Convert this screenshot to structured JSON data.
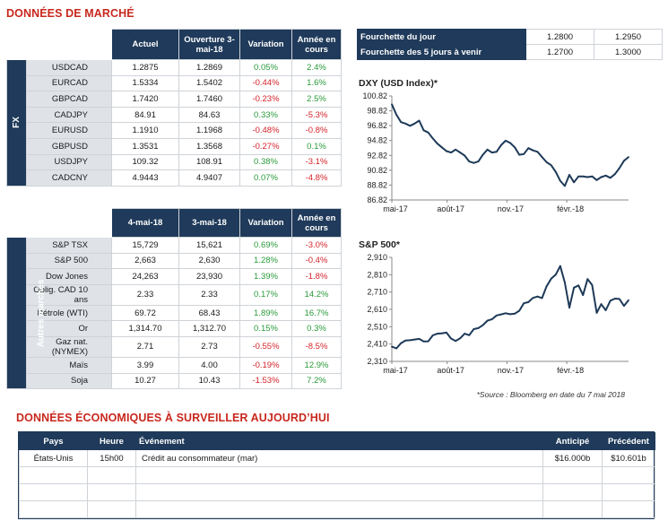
{
  "market_title": "DONNÉES DE MARCHÉ",
  "fx": {
    "label": "FX",
    "headers": [
      "Actuel",
      "Ouverture 3-mai-18",
      "Variation",
      "Année en cours"
    ],
    "rows": [
      {
        "name": "USDCAD",
        "cur": "1.2875",
        "open": "1.2869",
        "chg": "0.05%",
        "ytd": "2.4%"
      },
      {
        "name": "EURCAD",
        "cur": "1.5334",
        "open": "1.5402",
        "chg": "-0.44%",
        "ytd": "1.6%"
      },
      {
        "name": "GBPCAD",
        "cur": "1.7420",
        "open": "1.7460",
        "chg": "-0.23%",
        "ytd": "2.5%"
      },
      {
        "name": "CADJPY",
        "cur": "84.91",
        "open": "84.63",
        "chg": "0.33%",
        "ytd": "-5.3%"
      },
      {
        "name": "EURUSD",
        "cur": "1.1910",
        "open": "1.1968",
        "chg": "-0.48%",
        "ytd": "-0.8%"
      },
      {
        "name": "GBPUSD",
        "cur": "1.3531",
        "open": "1.3568",
        "chg": "-0.27%",
        "ytd": "0.1%"
      },
      {
        "name": "USDJPY",
        "cur": "109.32",
        "open": "108.91",
        "chg": "0.38%",
        "ytd": "-3.1%"
      },
      {
        "name": "CADCNY",
        "cur": "4.9443",
        "open": "4.9407",
        "chg": "0.07%",
        "ytd": "-4.8%"
      }
    ]
  },
  "other": {
    "label": "Autres marchés",
    "headers": [
      "4-mai-18",
      "3-mai-18",
      "Variation",
      "Année en cours"
    ],
    "rows": [
      {
        "name": "S&P TSX",
        "cur": "15,729",
        "open": "15,621",
        "chg": "0.69%",
        "ytd": "-3.0%"
      },
      {
        "name": "S&P 500",
        "cur": "2,663",
        "open": "2,630",
        "chg": "1.28%",
        "ytd": "-0.4%"
      },
      {
        "name": "Dow Jones",
        "cur": "24,263",
        "open": "23,930",
        "chg": "1.39%",
        "ytd": "-1.8%"
      },
      {
        "name": "Oblig. CAD 10 ans",
        "cur": "2.33",
        "open": "2.33",
        "chg": "0.17%",
        "ytd": "14.2%"
      },
      {
        "name": "Pétrole (WTI)",
        "cur": "69.72",
        "open": "68.43",
        "chg": "1.89%",
        "ytd": "16.7%"
      },
      {
        "name": "Or",
        "cur": "1,314.70",
        "open": "1,312.70",
        "chg": "0.15%",
        "ytd": "0.3%"
      },
      {
        "name": "Gaz nat. (NYMEX)",
        "cur": "2.71",
        "open": "2.73",
        "chg": "-0.55%",
        "ytd": "-8.5%"
      },
      {
        "name": "Maïs",
        "cur": "3.99",
        "open": "4.00",
        "chg": "-0.19%",
        "ytd": "12.9%"
      },
      {
        "name": "Soja",
        "cur": "10.27",
        "open": "10.43",
        "chg": "-1.53%",
        "ytd": "7.2%"
      }
    ]
  },
  "ranges": [
    {
      "label": "Fourchette du jour",
      "low": "1.2800",
      "high": "1.2950"
    },
    {
      "label": "Fourchette des 5 jours à venir",
      "low": "1.2700",
      "high": "1.3000"
    }
  ],
  "chart_data": [
    {
      "type": "line",
      "title": "DXY (USD Index)*",
      "x_ticks": [
        "mai-17",
        "août-17",
        "nov.-17",
        "févr.-18"
      ],
      "y_ticks": [
        "100.82",
        "98.82",
        "96.82",
        "94.82",
        "92.82",
        "90.82",
        "88.82",
        "86.82"
      ],
      "ylim": [
        86.82,
        100.82
      ],
      "series": [
        {
          "x": [
            "2017-05-08",
            "2017-05-15",
            "2017-05-22",
            "2017-05-29",
            "2017-06-05",
            "2017-06-12",
            "2017-06-19",
            "2017-06-26",
            "2017-07-03",
            "2017-07-10",
            "2017-07-17",
            "2017-07-24",
            "2017-07-31",
            "2017-08-07",
            "2017-08-14",
            "2017-08-21",
            "2017-08-28",
            "2017-09-04",
            "2017-09-11",
            "2017-09-18",
            "2017-09-25",
            "2017-10-02",
            "2017-10-09",
            "2017-10-16",
            "2017-10-23",
            "2017-10-30",
            "2017-11-06",
            "2017-11-13",
            "2017-11-20",
            "2017-11-27",
            "2017-12-04",
            "2017-12-11",
            "2017-12-18",
            "2017-12-25",
            "2018-01-01",
            "2018-01-08",
            "2018-01-15",
            "2018-01-22",
            "2018-01-29",
            "2018-02-05",
            "2018-02-12",
            "2018-02-19",
            "2018-02-26",
            "2018-03-05",
            "2018-03-12",
            "2018-03-19",
            "2018-03-26",
            "2018-04-02",
            "2018-04-09",
            "2018-04-16",
            "2018-04-23",
            "2018-04-30",
            "2018-05-07"
          ],
          "values": [
            99.7,
            98.3,
            97.3,
            97.1,
            96.8,
            97.1,
            97.5,
            96.2,
            95.9,
            95.1,
            94.4,
            93.9,
            93.4,
            93.2,
            93.6,
            93.2,
            92.8,
            92.0,
            91.8,
            92.0,
            92.9,
            93.6,
            93.2,
            93.3,
            94.2,
            94.8,
            94.5,
            93.9,
            92.9,
            93.0,
            93.8,
            93.5,
            93.3,
            92.6,
            91.9,
            91.5,
            90.6,
            89.4,
            88.7,
            90.2,
            89.2,
            90.0,
            90.0,
            89.9,
            90.0,
            89.5,
            89.9,
            90.1,
            89.8,
            90.3,
            91.1,
            92.1,
            92.6
          ]
        }
      ]
    },
    {
      "type": "line",
      "title": "S&P 500*",
      "x_ticks": [
        "mai-17",
        "août-17",
        "nov.-17",
        "févr.-18"
      ],
      "y_ticks": [
        "2,910",
        "2,810",
        "2,710",
        "2,610",
        "2,510",
        "2,410",
        "2,310"
      ],
      "ylim": [
        2310,
        2910
      ],
      "series": [
        {
          "x": [
            "2017-05-08",
            "2017-05-15",
            "2017-05-22",
            "2017-05-29",
            "2017-06-05",
            "2017-06-12",
            "2017-06-19",
            "2017-06-26",
            "2017-07-03",
            "2017-07-10",
            "2017-07-17",
            "2017-07-24",
            "2017-07-31",
            "2017-08-07",
            "2017-08-14",
            "2017-08-21",
            "2017-08-28",
            "2017-09-04",
            "2017-09-11",
            "2017-09-18",
            "2017-09-25",
            "2017-10-02",
            "2017-10-09",
            "2017-10-16",
            "2017-10-23",
            "2017-10-30",
            "2017-11-06",
            "2017-11-13",
            "2017-11-20",
            "2017-11-27",
            "2017-12-04",
            "2017-12-11",
            "2017-12-18",
            "2017-12-25",
            "2018-01-01",
            "2018-01-08",
            "2018-01-15",
            "2018-01-22",
            "2018-01-29",
            "2018-02-05",
            "2018-02-12",
            "2018-02-19",
            "2018-02-26",
            "2018-03-05",
            "2018-03-12",
            "2018-03-19",
            "2018-03-26",
            "2018-04-02",
            "2018-04-09",
            "2018-04-16",
            "2018-04-23",
            "2018-04-30",
            "2018-05-07"
          ],
          "values": [
            2395,
            2385,
            2415,
            2430,
            2432,
            2436,
            2440,
            2425,
            2426,
            2460,
            2470,
            2472,
            2476,
            2442,
            2428,
            2443,
            2470,
            2461,
            2496,
            2502,
            2519,
            2545,
            2553,
            2575,
            2581,
            2588,
            2582,
            2585,
            2602,
            2645,
            2652,
            2676,
            2684,
            2675,
            2743,
            2787,
            2810,
            2860,
            2765,
            2620,
            2735,
            2748,
            2692,
            2785,
            2750,
            2590,
            2640,
            2605,
            2660,
            2672,
            2670,
            2630,
            2663
          ]
        }
      ]
    }
  ],
  "source": "*Source : Bloomberg en date du  7 mai 2018",
  "econ": {
    "title": "DONNÉES ÉCONOMIQUES À SURVEILLER AUJOURD’HUI",
    "headers": [
      "Pays",
      "Heure",
      "Événement",
      "Anticipé",
      "Précédent"
    ],
    "rows": [
      [
        "États-Unis",
        "15h00",
        "Crédit au consommateur (mar)",
        "$16.000b",
        "$10.601b"
      ],
      [
        "",
        "",
        "",
        "",
        ""
      ],
      [
        "",
        "",
        "",
        "",
        ""
      ],
      [
        "",
        "",
        "",
        "",
        ""
      ]
    ]
  },
  "colors": {
    "navy": "#1f3a5a",
    "red_title": "#c8281e",
    "positive": "#2a9a3a",
    "negative": "#d3242a",
    "line": "#1e3a58"
  }
}
